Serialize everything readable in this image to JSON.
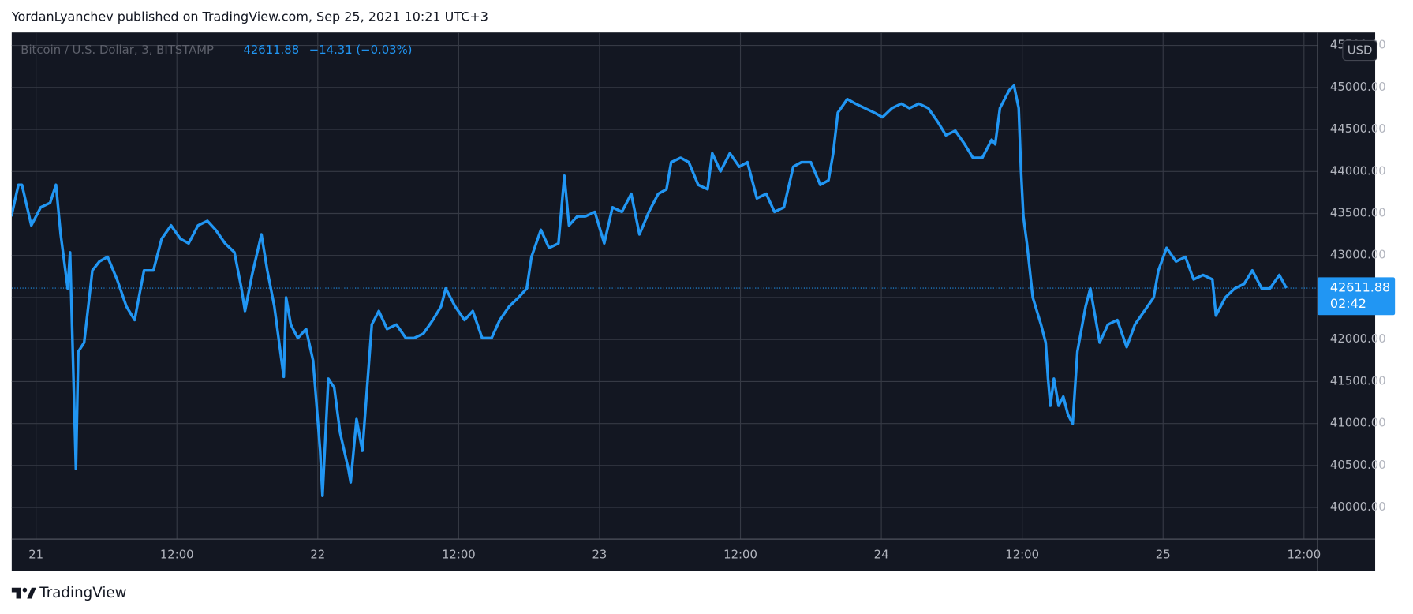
{
  "header": {
    "caption": "YordanLyanchev published on TradingView.com, Sep 25, 2021 10:21 UTC+3"
  },
  "chart_data": {
    "type": "line",
    "symbol": "Bitcoin / U.S. Dollar, 3, BITSTAMP",
    "last_price": "42611.88",
    "change": "−14.31 (−0.03%)",
    "countdown": "02:42",
    "currency": "USD",
    "color": "#2196f3",
    "grid": true,
    "x": [
      -2.1,
      -1.5,
      -1.2,
      -0.4,
      0.4,
      1.2,
      1.7,
      2.1,
      2.7,
      2.9,
      3.4,
      3.6,
      4.1,
      4.8,
      5.4,
      6.1,
      6.9,
      7.7,
      8.4,
      9.2,
      10.0,
      10.7,
      11.5,
      12.3,
      13.0,
      13.8,
      14.6,
      15.3,
      16.1,
      16.9,
      17.5,
      17.8,
      18.4,
      19.2,
      19.7,
      20.3,
      21.1,
      21.3,
      21.7,
      22.3,
      23.0,
      23.6,
      24.2,
      24.4,
      24.9,
      25.4,
      25.9,
      26.6,
      26.8,
      27.3,
      27.8,
      28.2,
      28.6,
      29.2,
      29.9,
      30.7,
      31.5,
      32.2,
      33.0,
      33.8,
      34.5,
      34.9,
      35.7,
      36.5,
      37.2,
      38.0,
      38.8,
      39.5,
      40.3,
      41.1,
      41.8,
      42.2,
      43.0,
      43.7,
      44.5,
      45.0,
      45.4,
      46.1,
      46.8,
      47.6,
      48.4,
      49.1,
      49.9,
      50.7,
      51.4,
      52.2,
      53.0,
      53.7,
      54.1,
      54.9,
      55.6,
      56.4,
      57.2,
      57.6,
      58.3,
      59.1,
      59.9,
      60.6,
      61.4,
      62.2,
      62.9,
      63.7,
      64.5,
      65.2,
      66.0,
      66.8,
      67.5,
      67.9,
      68.3,
      69.1,
      69.8,
      70.6,
      71.4,
      72.1,
      72.9,
      73.7,
      74.4,
      75.2,
      76.0,
      76.8,
      77.5,
      78.3,
      79.1,
      79.8,
      80.6,
      81.4,
      81.7,
      82.1,
      82.9,
      83.3,
      83.7,
      83.9,
      84.1,
      84.4,
      84.9,
      85.6,
      86.0,
      86.2,
      86.4,
      86.7,
      87.1,
      87.5,
      87.9,
      88.3,
      88.7,
      89.4,
      89.8,
      90.6,
      91.3,
      92.1,
      92.9,
      93.6,
      94.4,
      95.2,
      95.6,
      96.3,
      97.1,
      97.9,
      98.6,
      99.4,
      100.2,
      100.5,
      101.3,
      102.1,
      102.9,
      103.6,
      104.4,
      105.1,
      105.9,
      106.5
    ],
    "values": [
      43466,
      43841,
      43841,
      43358,
      43573,
      43627,
      43841,
      43251,
      42607,
      43037,
      40461,
      41856,
      41964,
      42822,
      42929,
      42983,
      42715,
      42393,
      42232,
      42822,
      42822,
      43198,
      43358,
      43198,
      43144,
      43358,
      43412,
      43305,
      43144,
      43037,
      42607,
      42339,
      42768,
      43251,
      42822,
      42393,
      41556,
      42500,
      42178,
      42017,
      42125,
      41749,
      40676,
      40139,
      41534,
      41427,
      40891,
      40461,
      40300,
      41052,
      40676,
      41427,
      42178,
      42339,
      42125,
      42178,
      42017,
      42017,
      42071,
      42232,
      42393,
      42607,
      42393,
      42232,
      42339,
      42017,
      42017,
      42232,
      42393,
      42500,
      42607,
      42983,
      43305,
      43090,
      43144,
      43949,
      43358,
      43466,
      43466,
      43519,
      43144,
      43573,
      43519,
      43734,
      43251,
      43519,
      43734,
      43788,
      44110,
      44163,
      44110,
      43841,
      43788,
      44217,
      44002,
      44217,
      44056,
      44110,
      43680,
      43734,
      43519,
      43573,
      44056,
      44110,
      44110,
      43841,
      43895,
      44217,
      44700,
      44861,
      44807,
      44753,
      44700,
      44646,
      44753,
      44807,
      44753,
      44807,
      44753,
      44592,
      44431,
      44485,
      44324,
      44163,
      44163,
      44378,
      44324,
      44753,
      44968,
      45022,
      44753,
      44002,
      43466,
      43144,
      42500,
      42178,
      41964,
      41534,
      41212,
      41534,
      41212,
      41320,
      41105,
      40998,
      41856,
      42393,
      42607,
      41964,
      42178,
      42232,
      41910,
      42178,
      42339,
      42500,
      42822,
      43090,
      42929,
      42983,
      42715,
      42768,
      42715,
      42285,
      42500,
      42607,
      42661,
      42822,
      42607,
      42607,
      42768,
      42611.88
    ],
    "xlim": [
      -2.07,
      109.15
    ],
    "ylim": [
      39624,
      45654
    ],
    "xticks": [
      {
        "value": 0,
        "label": "21"
      },
      {
        "value": 12,
        "label": "12:00"
      },
      {
        "value": 24,
        "label": "22"
      },
      {
        "value": 36,
        "label": "12:00"
      },
      {
        "value": 48,
        "label": "23"
      },
      {
        "value": 60,
        "label": "12:00"
      },
      {
        "value": 72,
        "label": "24"
      },
      {
        "value": 84,
        "label": "12:00"
      },
      {
        "value": 96,
        "label": "25"
      },
      {
        "value": 108,
        "label": "12:00"
      }
    ],
    "yticks": [
      {
        "value": 40000,
        "label": "40000.00"
      },
      {
        "value": 40500,
        "label": "40500.00"
      },
      {
        "value": 41000,
        "label": "41000.00"
      },
      {
        "value": 41500,
        "label": "41500.00"
      },
      {
        "value": 42000,
        "label": "42000.00"
      },
      {
        "value": 42500,
        "label": "42500.00"
      },
      {
        "value": 43000,
        "label": "43000.00"
      },
      {
        "value": 43500,
        "label": "43500.00"
      },
      {
        "value": 44000,
        "label": "44000.00"
      },
      {
        "value": 44500,
        "label": "44500.00"
      },
      {
        "value": 45000,
        "label": "45000.00"
      },
      {
        "value": 45500,
        "label": "45500.00"
      }
    ]
  },
  "footer": {
    "brand": "TradingView"
  }
}
